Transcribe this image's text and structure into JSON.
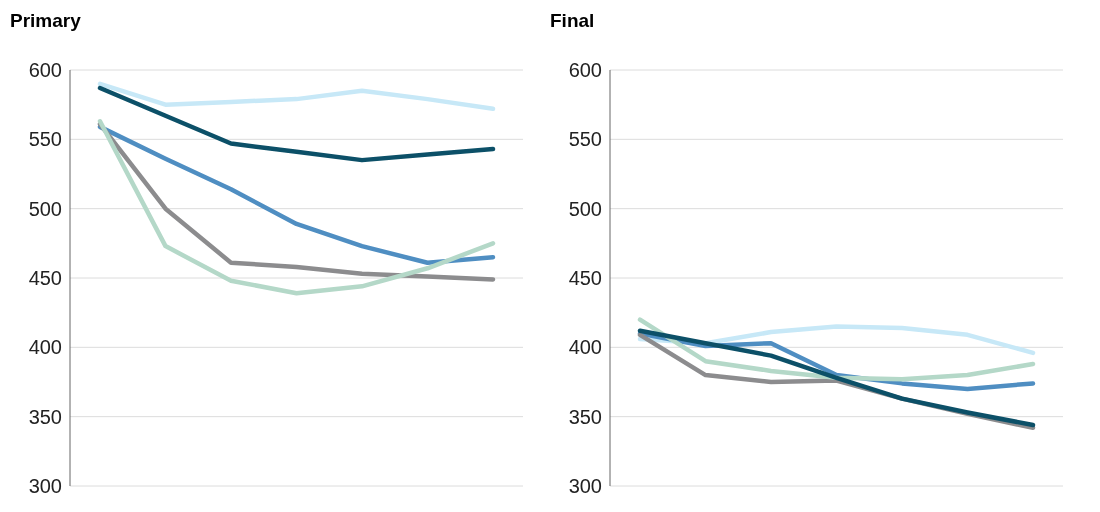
{
  "chart_data": [
    {
      "type": "line",
      "title": "Primary",
      "categories": [
        null,
        null,
        null,
        null,
        null,
        null,
        null
      ],
      "ylim": [
        300,
        600
      ],
      "yticks": [
        300,
        350,
        400,
        450,
        500,
        550,
        600
      ],
      "grid": "y",
      "legend": false,
      "marker": "none",
      "line_style": "solid",
      "series": [
        {
          "color": "#c7e8f7",
          "values": [
            590,
            575,
            577,
            579,
            585,
            579,
            572
          ]
        },
        {
          "color": "#0c5068",
          "values": [
            587,
            567,
            547,
            541,
            535,
            539,
            543
          ]
        },
        {
          "color": "#4f8ec2",
          "values": [
            559,
            536,
            514,
            489,
            473,
            461,
            465
          ]
        },
        {
          "color": "#8c8c8e",
          "values": [
            561,
            500,
            461,
            458,
            453,
            451,
            449
          ]
        },
        {
          "color": "#b4d8c8",
          "values": [
            563,
            473,
            448,
            439,
            444,
            457,
            475
          ]
        }
      ]
    },
    {
      "type": "line",
      "title": "Final",
      "categories": [
        null,
        null,
        null,
        null,
        null,
        null,
        null
      ],
      "ylim": [
        300,
        600
      ],
      "yticks": [
        300,
        350,
        400,
        450,
        500,
        550,
        600
      ],
      "grid": "y",
      "legend": false,
      "marker": "none",
      "line_style": "solid",
      "series": [
        {
          "color": "#c7e8f7",
          "values": [
            406,
            403,
            411,
            415,
            414,
            409,
            396
          ]
        },
        {
          "color": "#4f8ec2",
          "values": [
            410,
            401,
            403,
            380,
            374,
            370,
            374
          ]
        },
        {
          "color": "#8c8c8e",
          "values": [
            409,
            380,
            375,
            376,
            363,
            352,
            342
          ]
        },
        {
          "color": "#b4d8c8",
          "values": [
            420,
            390,
            383,
            378,
            377,
            380,
            388
          ]
        },
        {
          "color": "#0c5068",
          "values": [
            412,
            403,
            394,
            378,
            363,
            353,
            344
          ]
        }
      ]
    }
  ]
}
